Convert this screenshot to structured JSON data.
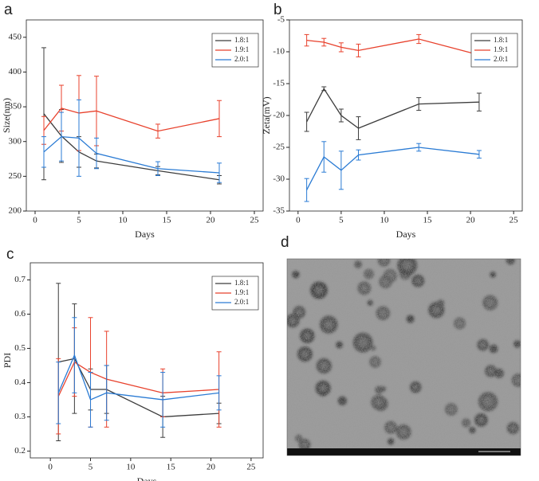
{
  "chart_data": [
    {
      "type": "line",
      "label": "a",
      "xlabel": "Days",
      "ylabel": "Size(nm)",
      "x": [
        1,
        3,
        5,
        7,
        14,
        21
      ],
      "xlim": [
        -1,
        26
      ],
      "xticks": [
        0,
        5,
        10,
        15,
        20,
        25
      ],
      "ylim": [
        200,
        475
      ],
      "yticks": [
        200,
        250,
        300,
        350,
        400,
        450
      ],
      "legend": "upper right",
      "series": [
        {
          "name": "1.8:1",
          "color": "#3c3c3c",
          "values": [
            340,
            308,
            285,
            272,
            258,
            245
          ],
          "errors": [
            95,
            38,
            22,
            10,
            6,
            6
          ]
        },
        {
          "name": "1.9:1",
          "color": "#e8412c",
          "values": [
            316,
            348,
            341,
            344,
            315,
            333
          ],
          "errors": [
            20,
            33,
            54,
            50,
            10,
            26
          ]
        },
        {
          "name": "2.0:1",
          "color": "#2a7bd4",
          "values": [
            285,
            307,
            305,
            283,
            261,
            255
          ],
          "errors": [
            22,
            35,
            55,
            22,
            10,
            14
          ]
        }
      ]
    },
    {
      "type": "line",
      "label": "b",
      "xlabel": "Days",
      "ylabel": "Zeta(mV)",
      "x": [
        1,
        3,
        5,
        7,
        14,
        21
      ],
      "xlim": [
        -1,
        26
      ],
      "xticks": [
        0,
        5,
        10,
        15,
        20,
        25
      ],
      "ylim": [
        -35,
        -5
      ],
      "yticks": [
        -35,
        -30,
        -25,
        -20,
        -15,
        -10,
        -5
      ],
      "legend": "upper right",
      "series": [
        {
          "name": "1.8:1",
          "color": "#3c3c3c",
          "values": [
            -21,
            -15.8,
            -20,
            -22,
            -18.2,
            -17.9
          ],
          "errors": [
            1.5,
            0.3,
            1,
            1.8,
            1,
            1.4
          ]
        },
        {
          "name": "1.9:1",
          "color": "#e8412c",
          "values": [
            -8.2,
            -8.5,
            -9.3,
            -9.8,
            -8,
            -10.5
          ],
          "errors": [
            0.9,
            0.6,
            0.7,
            1,
            0.7,
            1
          ]
        },
        {
          "name": "2.0:1",
          "color": "#2a7bd4",
          "values": [
            -31.7,
            -26.5,
            -28.6,
            -26.2,
            -25,
            -26.1
          ],
          "errors": [
            1.8,
            2.4,
            3,
            0.8,
            0.6,
            0.6
          ]
        }
      ]
    },
    {
      "type": "line",
      "label": "c",
      "xlabel": "Days",
      "ylabel": "PDI",
      "x": [
        1,
        3,
        5,
        7,
        14,
        21
      ],
      "xlim": [
        -2.5,
        26.5
      ],
      "xticks": [
        0,
        5,
        10,
        15,
        20,
        25
      ],
      "ylim": [
        0.18,
        0.75
      ],
      "yticks": [
        0.2,
        0.3,
        0.4,
        0.5,
        0.6,
        0.7
      ],
      "legend": "upper right",
      "series": [
        {
          "name": "1.8:1",
          "color": "#3c3c3c",
          "values": [
            0.46,
            0.47,
            0.38,
            0.38,
            0.3,
            0.31
          ],
          "errors": [
            0.23,
            0.16,
            0.06,
            0.07,
            0.06,
            0.03
          ]
        },
        {
          "name": "1.9:1",
          "color": "#e8412c",
          "values": [
            0.36,
            0.46,
            0.43,
            0.41,
            0.37,
            0.38
          ],
          "errors": [
            0.11,
            0.1,
            0.16,
            0.14,
            0.07,
            0.11
          ]
        },
        {
          "name": "2.0:1",
          "color": "#2a7bd4",
          "values": [
            0.37,
            0.48,
            0.35,
            0.37,
            0.35,
            0.37
          ],
          "errors": [
            0.09,
            0.11,
            0.08,
            0.08,
            0.08,
            0.05
          ]
        }
      ]
    }
  ],
  "image_panel": {
    "label": "d"
  }
}
